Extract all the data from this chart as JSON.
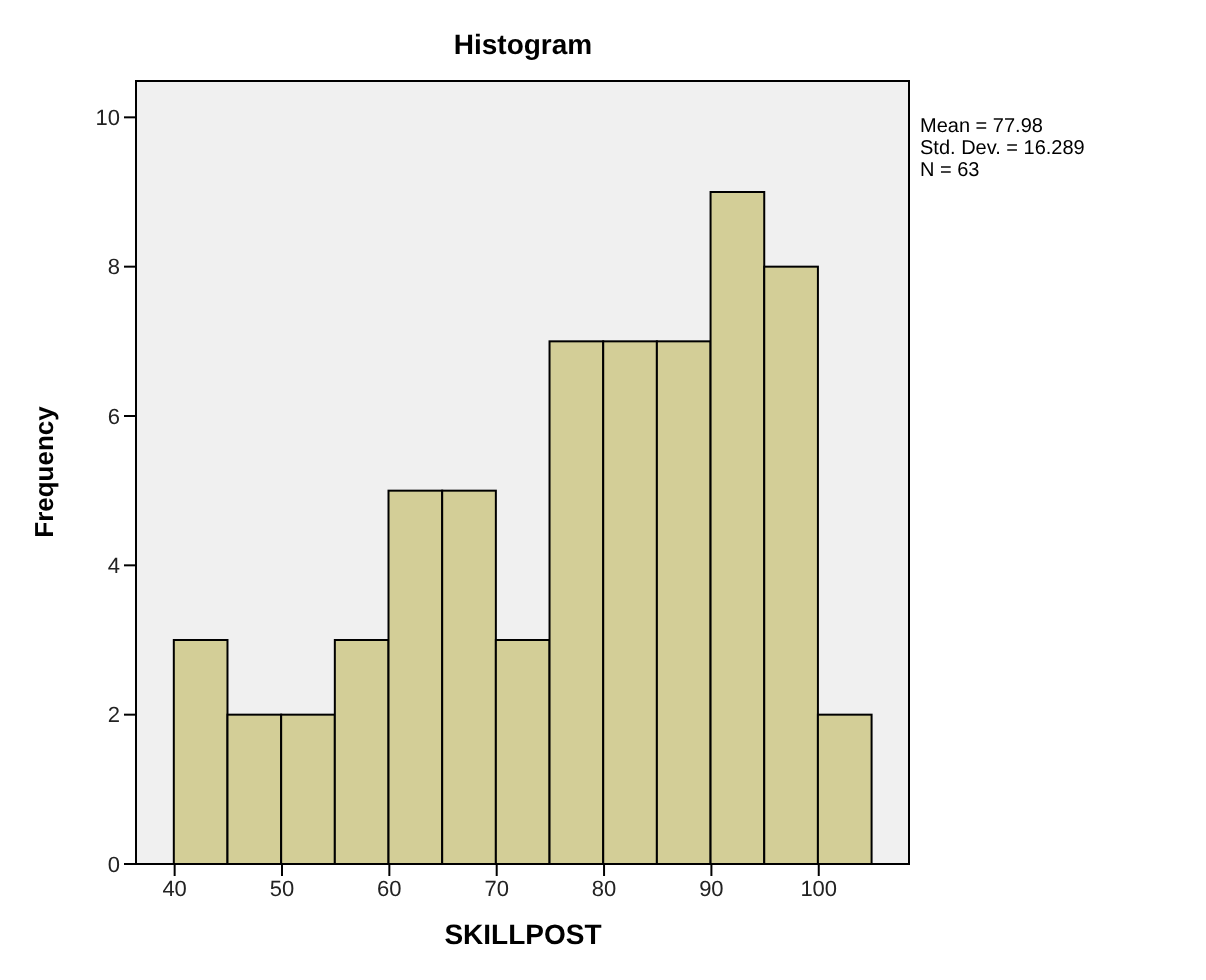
{
  "chart_data": {
    "type": "histogram",
    "title": "Histogram",
    "xlabel": "SKILLPOST",
    "ylabel": "Frequency",
    "bins": [
      40,
      45,
      50,
      55,
      60,
      65,
      70,
      75,
      80,
      85,
      90,
      95,
      100,
      105
    ],
    "values": [
      3,
      2,
      2,
      3,
      5,
      5,
      3,
      7,
      7,
      7,
      9,
      8,
      2
    ],
    "color": "#d3ce97",
    "xlim": [
      36.4,
      108.5
    ],
    "xticks": [
      40,
      50,
      60,
      70,
      80,
      90,
      100
    ],
    "ylim": [
      0,
      10.5
    ],
    "yticks": [
      0,
      2,
      4,
      6,
      8,
      10
    ],
    "grid": false,
    "annotations": [
      "Mean = 77.98",
      "Std. Dev. = 16.289",
      "N = 63"
    ]
  }
}
